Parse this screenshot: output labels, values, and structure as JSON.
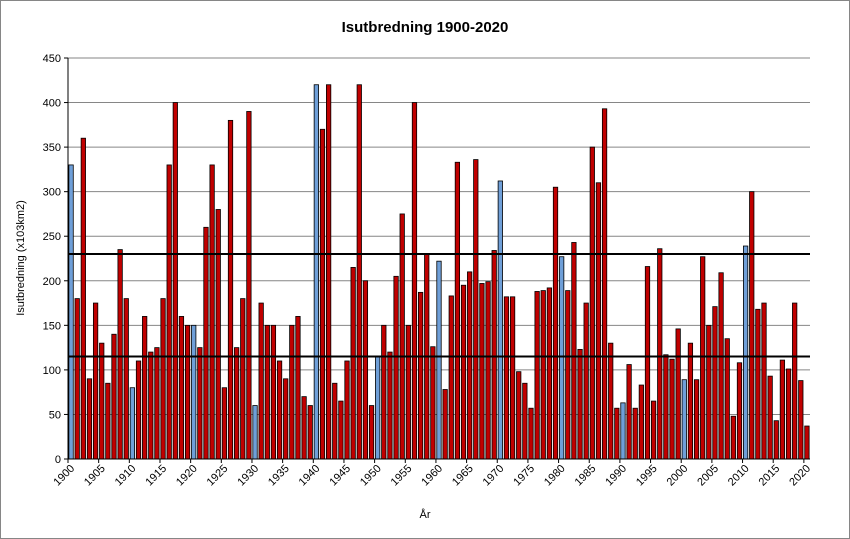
{
  "chart_data": {
    "type": "bar",
    "title": "Isutbredning 1900-2020",
    "xlabel": "År",
    "ylabel": "Isutbredning (x103km2)",
    "ylim": [
      0,
      450
    ],
    "yticks": [
      0,
      50,
      100,
      150,
      200,
      250,
      300,
      350,
      400,
      450
    ],
    "grid": true,
    "x_start": 1900,
    "x_end": 2020,
    "xtick_step": 5,
    "colors": {
      "bar": "#c00000",
      "highlight_bar": "#6f9fd8",
      "reference_line": "#000000",
      "grid": "#868686"
    },
    "highlight_years": [
      1900,
      1910,
      1920,
      1930,
      1940,
      1950,
      1960,
      1970,
      1980,
      1990,
      2000,
      2010
    ],
    "reference_lines": [
      230,
      115
    ],
    "values": [
      330,
      180,
      360,
      90,
      175,
      130,
      85,
      140,
      235,
      180,
      80,
      110,
      160,
      120,
      125,
      180,
      330,
      400,
      160,
      150,
      150,
      125,
      260,
      330,
      280,
      80,
      380,
      125,
      180,
      390,
      60,
      175,
      150,
      150,
      110,
      90,
      150,
      160,
      70,
      60,
      420,
      370,
      420,
      85,
      65,
      110,
      215,
      420,
      200,
      60,
      115,
      150,
      120,
      205,
      275,
      150,
      400,
      187,
      230,
      126,
      222,
      78,
      183,
      333,
      195,
      210,
      336,
      197,
      199,
      234,
      312,
      182,
      182,
      98,
      85,
      57,
      188,
      189,
      192,
      305,
      227,
      189,
      243,
      123,
      175,
      350,
      310,
      393,
      130,
      57,
      63,
      106,
      57,
      83,
      216,
      65,
      236,
      117,
      112,
      146,
      89,
      130,
      89,
      227,
      150,
      171,
      209,
      135,
      48,
      108,
      239,
      300,
      168,
      175,
      93,
      43,
      111,
      101,
      175,
      88,
      37
    ]
  }
}
